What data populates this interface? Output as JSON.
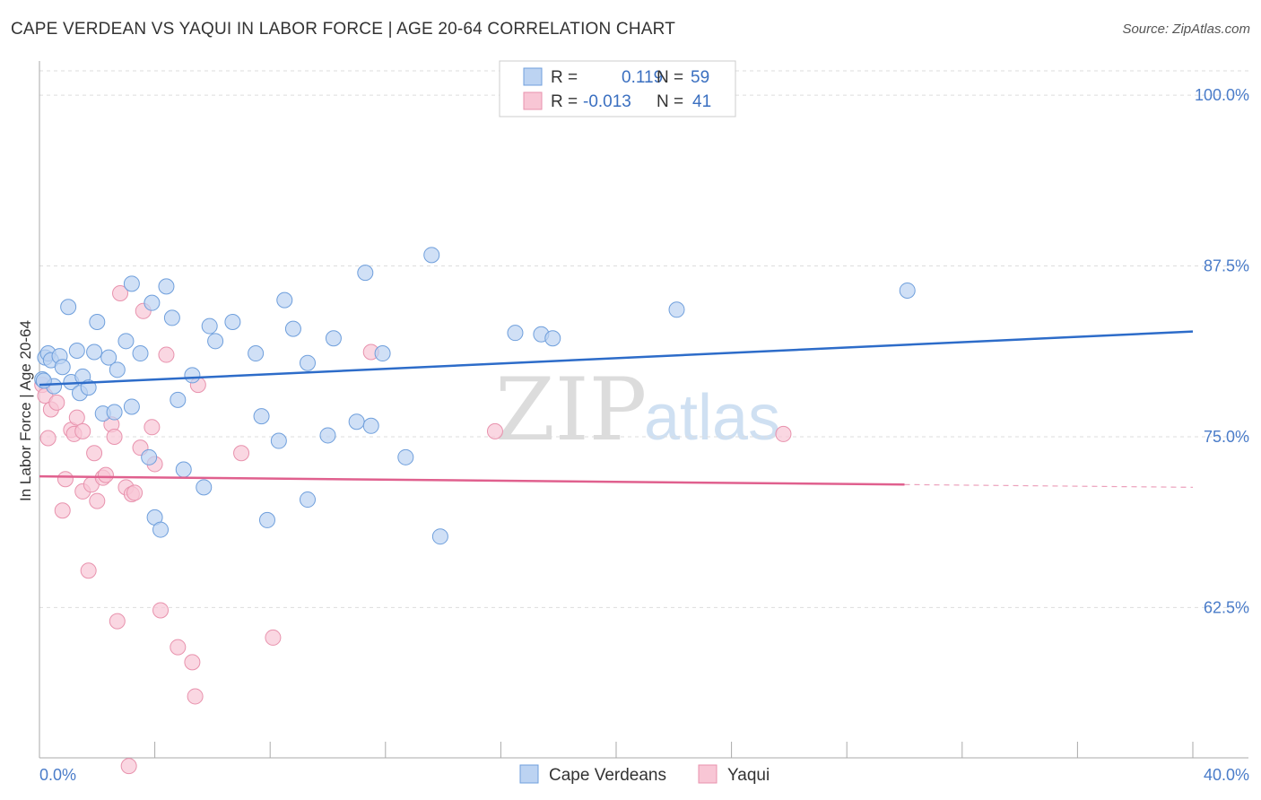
{
  "title": "CAPE VERDEAN VS YAQUI IN LABOR FORCE | AGE 20-64 CORRELATION CHART",
  "source": "Source: ZipAtlas.com",
  "watermark": {
    "zip": "ZIP",
    "atlas": "atlas"
  },
  "colors": {
    "blue_fill": "#bcd3f2",
    "blue_stroke": "#6f9fdc",
    "blue_line": "#2d6cc9",
    "pink_fill": "#f8c6d5",
    "pink_stroke": "#e892ad",
    "pink_line": "#e0608e",
    "grid": "#dddddd",
    "tick_text": "#4a7cc9"
  },
  "legend": {
    "r_label": "R =",
    "n_label": "N =",
    "rows": [
      {
        "r": "0.119",
        "n": "59"
      },
      {
        "r": "-0.013",
        "n": "41"
      }
    ]
  },
  "bottom_legend": [
    "Cape Verdeans",
    "Yaqui"
  ],
  "chart_data": {
    "type": "scatter",
    "title": "CAPE VERDEAN VS YAQUI IN LABOR FORCE | AGE 20-64 CORRELATION CHART",
    "xlabel": "",
    "ylabel": "In Labor Force | Age 20-64",
    "xlim": [
      0,
      40
    ],
    "ylim": [
      51.5,
      102.5
    ],
    "x_tick_labels": [
      "0.0%",
      "40.0%"
    ],
    "y_ticks": [
      62.5,
      75.0,
      87.5,
      100.0
    ],
    "y_tick_labels": [
      "62.5%",
      "75.0%",
      "87.5%",
      "100.0%"
    ],
    "series": [
      {
        "name": "Cape Verdeans",
        "trend": {
          "x": [
            0,
            40
          ],
          "y": [
            78.8,
            82.7
          ]
        },
        "points": [
          [
            0.1,
            79.2
          ],
          [
            0.2,
            80.8
          ],
          [
            0.3,
            81.1
          ],
          [
            0.4,
            80.6
          ],
          [
            0.5,
            78.7
          ],
          [
            0.7,
            80.9
          ],
          [
            0.8,
            80.1
          ],
          [
            1.0,
            84.5
          ],
          [
            1.1,
            79.0
          ],
          [
            1.3,
            81.3
          ],
          [
            1.4,
            78.2
          ],
          [
            1.5,
            79.4
          ],
          [
            1.7,
            78.6
          ],
          [
            1.9,
            81.2
          ],
          [
            2.0,
            83.4
          ],
          [
            2.2,
            76.7
          ],
          [
            2.4,
            80.8
          ],
          [
            2.6,
            76.8
          ],
          [
            2.7,
            79.9
          ],
          [
            3.0,
            82.0
          ],
          [
            3.2,
            77.2
          ],
          [
            3.2,
            86.2
          ],
          [
            3.5,
            81.1
          ],
          [
            3.8,
            73.5
          ],
          [
            3.9,
            84.8
          ],
          [
            4.0,
            69.1
          ],
          [
            4.2,
            68.2
          ],
          [
            4.4,
            86.0
          ],
          [
            4.6,
            83.7
          ],
          [
            4.8,
            77.7
          ],
          [
            5.0,
            72.6
          ],
          [
            5.3,
            79.5
          ],
          [
            5.7,
            71.3
          ],
          [
            5.9,
            83.1
          ],
          [
            6.1,
            82.0
          ],
          [
            6.7,
            83.4
          ],
          [
            7.5,
            81.1
          ],
          [
            7.7,
            76.5
          ],
          [
            7.9,
            68.9
          ],
          [
            8.3,
            74.7
          ],
          [
            8.5,
            85.0
          ],
          [
            8.8,
            82.9
          ],
          [
            9.3,
            70.4
          ],
          [
            9.3,
            80.4
          ],
          [
            10.0,
            75.1
          ],
          [
            10.2,
            82.2
          ],
          [
            11.0,
            76.1
          ],
          [
            11.5,
            75.8
          ],
          [
            11.3,
            87.0
          ],
          [
            11.9,
            81.1
          ],
          [
            12.7,
            73.5
          ],
          [
            13.6,
            88.3
          ],
          [
            13.9,
            67.7
          ],
          [
            16.5,
            82.6
          ],
          [
            17.4,
            82.5
          ],
          [
            17.8,
            82.2
          ],
          [
            22.1,
            84.3
          ],
          [
            30.1,
            85.7
          ],
          [
            0.15,
            79.1
          ]
        ]
      },
      {
        "name": "Yaqui",
        "trend": {
          "x": [
            0,
            30
          ],
          "y": [
            72.1,
            71.5
          ]
        },
        "trend_dashed": {
          "x": [
            30,
            40
          ],
          "y": [
            71.5,
            71.3
          ]
        },
        "points": [
          [
            0.1,
            78.8
          ],
          [
            0.2,
            78.0
          ],
          [
            0.3,
            74.9
          ],
          [
            0.4,
            77.0
          ],
          [
            0.6,
            77.5
          ],
          [
            0.8,
            69.6
          ],
          [
            0.9,
            71.9
          ],
          [
            1.1,
            75.5
          ],
          [
            1.2,
            75.2
          ],
          [
            1.3,
            76.4
          ],
          [
            1.5,
            75.4
          ],
          [
            1.5,
            71.0
          ],
          [
            1.7,
            65.2
          ],
          [
            1.8,
            71.5
          ],
          [
            1.9,
            73.8
          ],
          [
            2.0,
            70.3
          ],
          [
            2.2,
            72.0
          ],
          [
            2.3,
            72.2
          ],
          [
            2.5,
            75.9
          ],
          [
            2.6,
            75.0
          ],
          [
            2.7,
            61.5
          ],
          [
            2.8,
            85.5
          ],
          [
            3.0,
            71.3
          ],
          [
            3.1,
            50.9
          ],
          [
            3.2,
            70.8
          ],
          [
            3.3,
            70.9
          ],
          [
            3.5,
            74.2
          ],
          [
            3.6,
            84.2
          ],
          [
            3.9,
            75.7
          ],
          [
            4.0,
            73.0
          ],
          [
            4.2,
            62.3
          ],
          [
            4.4,
            81.0
          ],
          [
            4.8,
            59.6
          ],
          [
            5.3,
            58.5
          ],
          [
            5.4,
            56.0
          ],
          [
            5.5,
            78.8
          ],
          [
            7.0,
            73.8
          ],
          [
            8.1,
            60.3
          ],
          [
            11.5,
            81.2
          ],
          [
            15.8,
            75.4
          ],
          [
            25.8,
            75.2
          ]
        ]
      }
    ]
  }
}
